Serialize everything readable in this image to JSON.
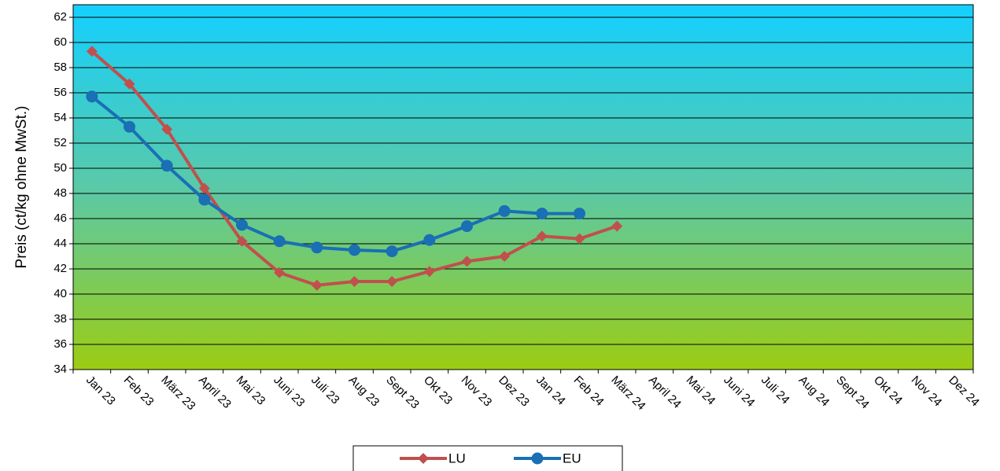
{
  "chart_data": {
    "type": "line",
    "y_label": "Preis (ct/kg ohne MwSt.)",
    "categories": [
      "Jan 23",
      "Feb 23",
      "März 23",
      "April 23",
      "Mai 23",
      "Juni 23",
      "Juli 23",
      "Aug 23",
      "Sept 23",
      "Okt 23",
      "Nov 23",
      "Dez 23",
      "Jan 24",
      "Feb 24",
      "März 24",
      "April 24",
      "Mai 24",
      "Juni 24",
      "Juli 24",
      "Aug 24",
      "Sept 24",
      "Okt 24",
      "Nov 24",
      "Dez 24"
    ],
    "series": [
      {
        "name": "LU",
        "color": "#c0504d",
        "marker": "diamond",
        "values": [
          59.3,
          56.7,
          53.1,
          48.4,
          44.2,
          41.7,
          40.7,
          41.0,
          41.0,
          41.8,
          42.6,
          43.0,
          44.6,
          44.4,
          45.4,
          null,
          null,
          null,
          null,
          null,
          null,
          null,
          null,
          null
        ]
      },
      {
        "name": "EU",
        "color": "#1a6fb5",
        "marker": "circle",
        "values": [
          55.7,
          53.3,
          50.2,
          47.5,
          45.5,
          44.2,
          43.7,
          43.5,
          43.4,
          44.3,
          45.4,
          46.6,
          46.4,
          46.4,
          null,
          null,
          null,
          null,
          null,
          null,
          null,
          null,
          null,
          null
        ]
      }
    ],
    "ylim": [
      34,
      63
    ],
    "yticks": [
      34,
      36,
      38,
      40,
      42,
      44,
      46,
      48,
      50,
      52,
      54,
      56,
      58,
      60,
      62
    ],
    "grid": true
  }
}
